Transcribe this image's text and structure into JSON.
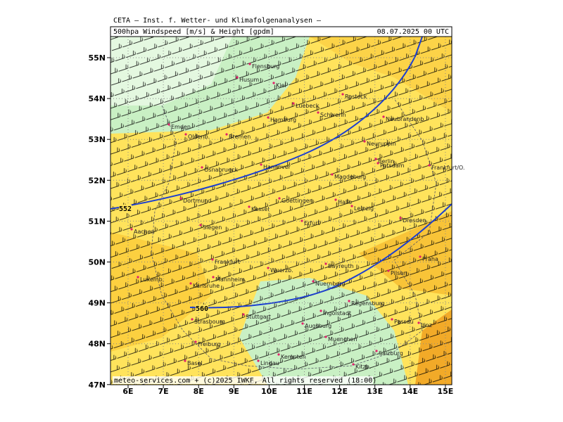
{
  "header": {
    "institute": "CETA — Inst. f. Wetter- und Klimafolgenanalysen —",
    "product": "500hpa Windspeed [m/s] & Height [gpdm]",
    "valid": "08.07.2025 00 UTC"
  },
  "axes": {
    "lat_labels": [
      "55N",
      "54N",
      "53N",
      "52N",
      "51N",
      "50N",
      "49N",
      "48N",
      "47N"
    ],
    "lon_labels": [
      "6E",
      "7E",
      "8E",
      "9E",
      "10E",
      "11E",
      "12E",
      "13E",
      "14E",
      "15E"
    ]
  },
  "contours": [
    "552",
    "560"
  ],
  "cities": [
    "Flensburg",
    "Husum",
    "Kiel",
    "Rostock",
    "Luebeck",
    "Schwerin",
    "Hamburg",
    "Neubrandenb.",
    "Emden",
    "Oldenb.",
    "Bremen",
    "Neuruppin",
    "Berlin",
    "Potsdam",
    "Frankfurt/O.",
    "Osnabrueck",
    "Hannover",
    "Magdeburg",
    "Dortmund",
    "Goettingen",
    "Halle",
    "Kassel",
    "Leipzig",
    "Aachen",
    "Siegen",
    "Erfurt",
    "Dresden",
    "Frankfurt",
    "Wuerzb.",
    "Bayreuth",
    "Praha",
    "Pilsen",
    "Luxemb.",
    "Mannheim",
    "Nuernberg",
    "Karlsruhe",
    "Regensburg",
    "Stuttgart",
    "Ingolstadt",
    "Augsburg",
    "Passau",
    "Linz",
    "Strasbourg",
    "Muenchen",
    "Freiburg",
    "Salzburg",
    "Kempten",
    "Lindau",
    "Basel",
    "Kitzb."
  ],
  "footer": "meteo-services.com + (c)2025 IWKF, All rights reserved (18:00)"
}
